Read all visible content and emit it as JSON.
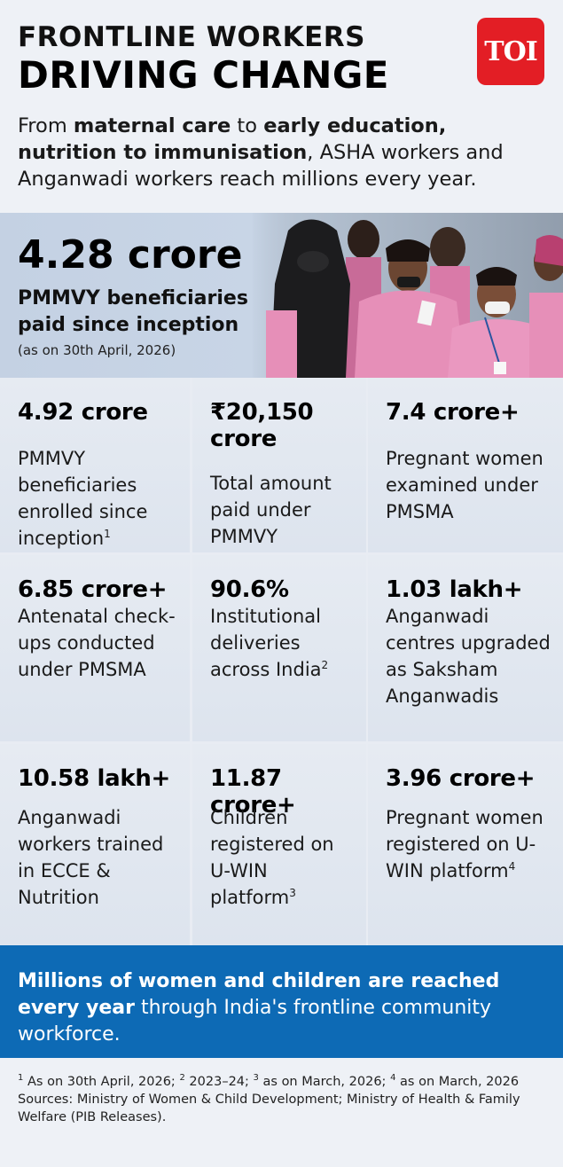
{
  "header": {
    "title_line1": "FRONTLINE WORKERS",
    "title_line2": "DRIVING CHANGE",
    "logo_text": "TOI",
    "intro": [
      {
        "text": "From ",
        "bold": false
      },
      {
        "text": "maternal care",
        "bold": true
      },
      {
        "text": " to ",
        "bold": false
      },
      {
        "text": "early education, nutrition to immunisation",
        "bold": true
      },
      {
        "text": ", ASHA workers and Anganwadi workers reach millions every year.",
        "bold": false
      }
    ]
  },
  "hero": {
    "value": "4.28 crore",
    "label": "PMMVY beneficiaries paid since inception",
    "note": "(as on 30th April, 2026)"
  },
  "stats": [
    {
      "value": "4.92 crore",
      "label": "PMMVY beneficiaries enrolled since inception",
      "sup": "1"
    },
    {
      "value": "₹20,150 crore",
      "label": "Total amount paid under PMMVY",
      "sup": ""
    },
    {
      "value": "7.4 crore+",
      "label": "Pregnant women examined under PMSMA",
      "sup": ""
    },
    {
      "value": "6.85 crore+",
      "label": "Antenatal check-ups conducted under PMSMA",
      "sup": ""
    },
    {
      "value": "90.6%",
      "label": "Institutional deliveries across India",
      "sup": "2"
    },
    {
      "value": "1.03 lakh+",
      "label": "Anganwadi centres upgraded as Saksham Anganwadis",
      "sup": ""
    },
    {
      "value": "10.58 lakh+",
      "label": "Anganwadi workers trained in ECCE & Nutrition",
      "sup": ""
    },
    {
      "value": "11.87 crore+",
      "label": "Children registered on U-WIN platform",
      "sup": "3"
    },
    {
      "value": "3.96 crore+",
      "label": "Pregnant women registered on U-WIN platform",
      "sup": "4"
    }
  ],
  "banner": {
    "bold_text": "Millions of women and children are reached every year",
    "rest_text": " through India's frontline community workforce."
  },
  "footer": {
    "notes": [
      {
        "sup": "1",
        "text": " As on 30th April, 2026; "
      },
      {
        "sup": "2",
        "text": " 2023–24; "
      },
      {
        "sup": "3",
        "text": " as on March, 2026; "
      },
      {
        "sup": "4",
        "text": " as on March, 2026"
      }
    ],
    "sources": "Sources: Ministry of Women & Child Development; Ministry of Health & Family Welfare (PIB Releases)."
  },
  "colors": {
    "logo_red": "#e31e25",
    "banner_blue": "#0d6ab5",
    "hero_bg": "#c4d1e3",
    "uniform_pink": "#e68fb8"
  },
  "hero_photo_icon": "women-in-pink-uniforms-photo"
}
